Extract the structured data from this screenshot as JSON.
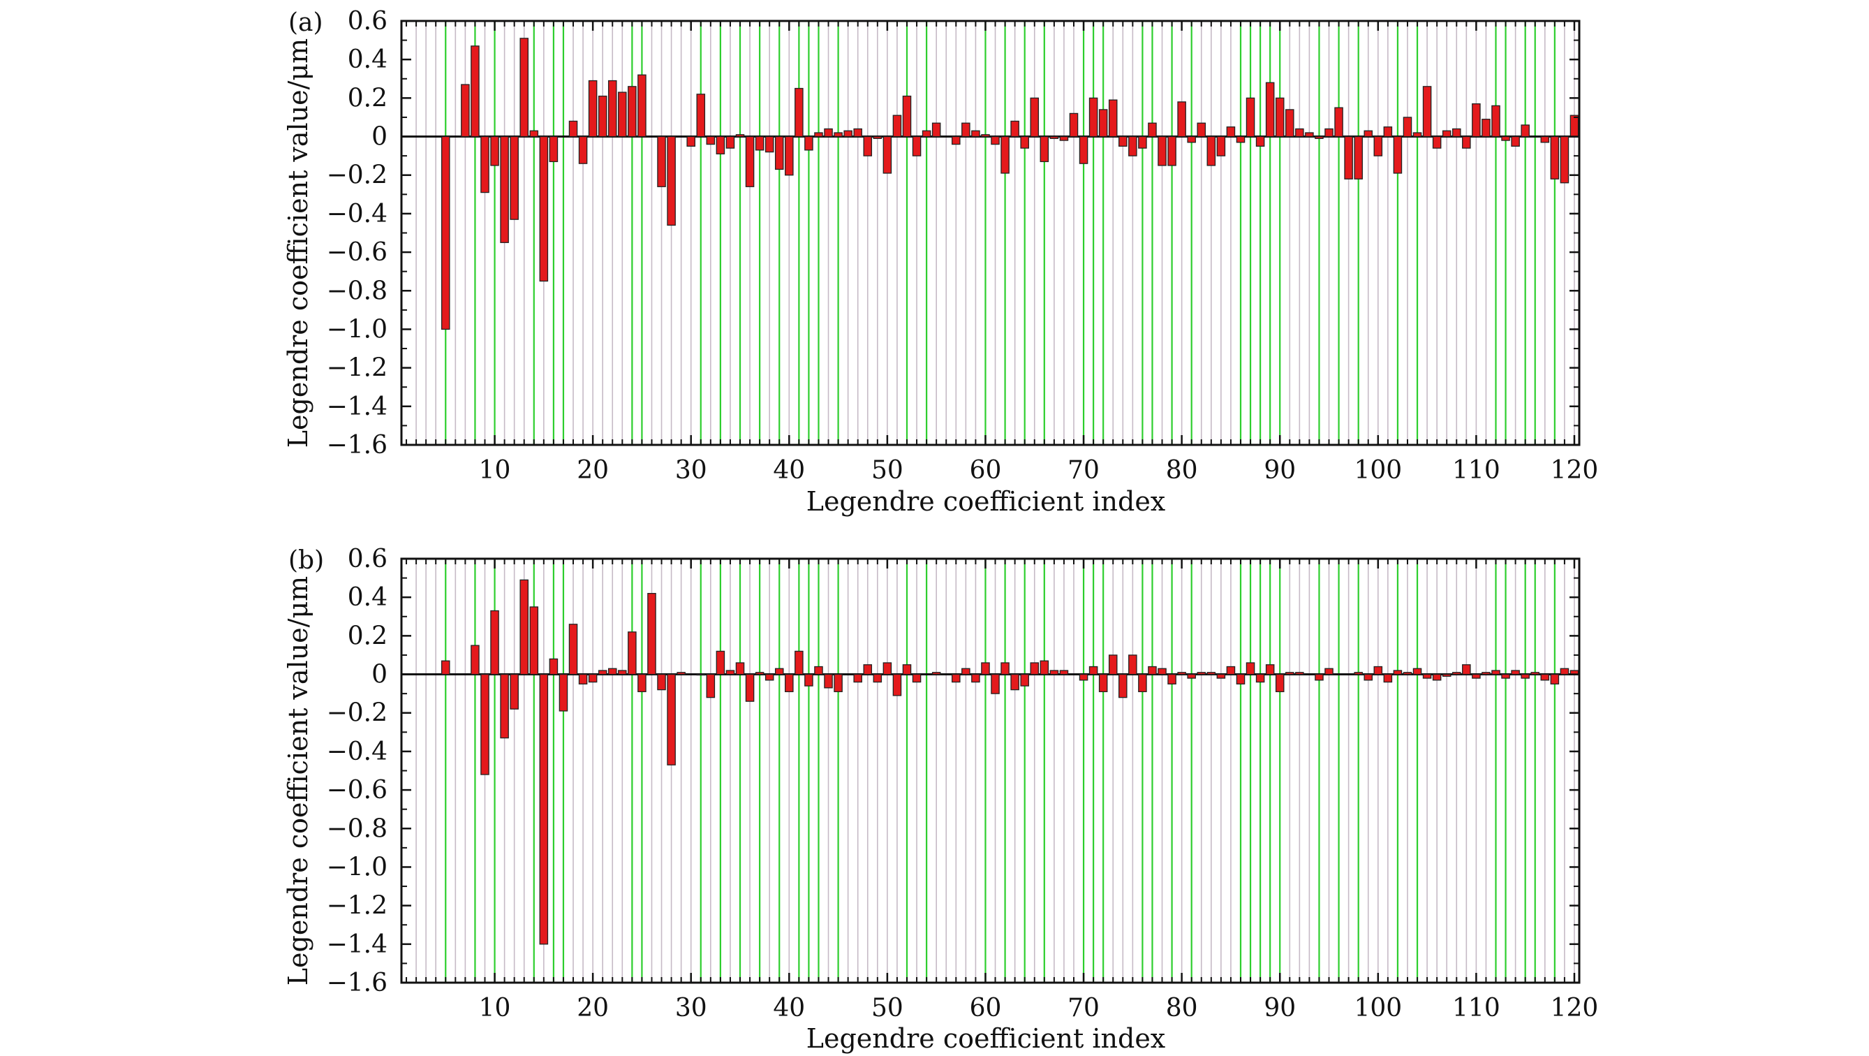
{
  "colors": {
    "bar_fill": "#e41a1c",
    "bar_edge": "#222222",
    "grid_green": "#22cc22",
    "grid_grey": "#b9a9b9",
    "axis": "#111111"
  },
  "chart_data": [
    {
      "panel": "(a)",
      "type": "bar",
      "xlabel": "Legendre coefficient index",
      "ylabel": "Legendre coefficient value/μm",
      "xlim": [
        1,
        120
      ],
      "ylim": [
        -1.6,
        0.6
      ],
      "xticks": [
        10,
        20,
        30,
        40,
        50,
        60,
        70,
        80,
        90,
        100,
        110,
        120
      ],
      "yticks": [
        0.6,
        0.4,
        0.2,
        0,
        -0.2,
        -0.4,
        -0.6,
        -0.8,
        -1.0,
        -1.2,
        -1.4,
        -1.6
      ],
      "ytick_labels": [
        "0.6",
        "0.4",
        "0.2",
        "0",
        "−0.2",
        "−0.4",
        "−0.6",
        "−0.8",
        "−1.0",
        "−1.2",
        "−1.4",
        "−1.6"
      ],
      "grid": "vertical",
      "x": [
        5,
        7,
        8,
        9,
        10,
        11,
        12,
        13,
        14,
        15,
        16,
        18,
        19,
        20,
        21,
        22,
        23,
        24,
        25,
        27,
        28,
        30,
        31,
        32,
        33,
        34,
        35,
        36,
        37,
        38,
        39,
        40,
        41,
        42,
        43,
        44,
        45,
        46,
        47,
        48,
        49,
        50,
        51,
        52,
        53,
        54,
        55,
        57,
        58,
        59,
        60,
        61,
        62,
        63,
        64,
        65,
        66,
        67,
        68,
        69,
        70,
        71,
        72,
        73,
        74,
        75,
        76,
        77,
        78,
        79,
        80,
        81,
        82,
        83,
        84,
        85,
        86,
        87,
        88,
        89,
        90,
        91,
        92,
        93,
        94,
        95,
        96,
        97,
        98,
        99,
        100,
        101,
        102,
        103,
        104,
        105,
        106,
        107,
        108,
        109,
        110,
        111,
        112,
        113,
        114,
        115,
        117,
        118,
        119,
        120
      ],
      "values": [
        -1.0,
        0.27,
        0.47,
        -0.29,
        -0.15,
        -0.55,
        -0.43,
        0.51,
        0.03,
        -0.75,
        -0.13,
        0.08,
        -0.14,
        0.29,
        0.21,
        0.29,
        0.23,
        0.26,
        0.32,
        -0.26,
        -0.46,
        -0.05,
        0.22,
        -0.04,
        -0.09,
        -0.06,
        0.01,
        -0.26,
        -0.07,
        -0.08,
        -0.17,
        -0.2,
        0.25,
        -0.07,
        0.02,
        0.04,
        0.02,
        0.03,
        0.04,
        -0.1,
        -0.01,
        -0.19,
        0.11,
        0.21,
        -0.1,
        0.03,
        0.07,
        -0.04,
        0.07,
        0.03,
        0.01,
        -0.04,
        -0.19,
        0.08,
        -0.06,
        0.2,
        -0.13,
        -0.01,
        -0.02,
        0.12,
        -0.14,
        0.2,
        0.14,
        0.19,
        -0.05,
        -0.1,
        -0.06,
        0.07,
        -0.15,
        -0.15,
        0.18,
        -0.03,
        0.07,
        -0.15,
        -0.1,
        0.05,
        -0.03,
        0.2,
        -0.05,
        0.28,
        0.2,
        0.14,
        0.04,
        0.02,
        -0.01,
        0.04,
        0.15,
        -0.22,
        -0.22,
        0.03,
        -0.1,
        0.05,
        -0.19,
        0.1,
        0.02,
        0.26,
        -0.06,
        0.03,
        0.04,
        -0.06,
        0.17,
        0.09,
        0.16,
        -0.02,
        -0.05,
        0.06,
        -0.03,
        -0.22,
        -0.24,
        0.11
      ]
    },
    {
      "panel": "(b)",
      "type": "bar",
      "xlabel": "Legendre coefficient index",
      "ylabel": "Legendre coefficient value/μm",
      "xlim": [
        1,
        120
      ],
      "ylim": [
        -1.6,
        0.6
      ],
      "xticks": [
        10,
        20,
        30,
        40,
        50,
        60,
        70,
        80,
        90,
        100,
        110,
        120
      ],
      "yticks": [
        0.6,
        0.4,
        0.2,
        0,
        -0.2,
        -0.4,
        -0.6,
        -0.8,
        -1.0,
        -1.2,
        -1.4,
        -1.6
      ],
      "ytick_labels": [
        "0.6",
        "0.4",
        "0.2",
        "0",
        "−0.2",
        "−0.4",
        "−0.6",
        "−0.8",
        "−1.0",
        "−1.2",
        "−1.4",
        "−1.6"
      ],
      "grid": "vertical",
      "x": [
        5,
        8,
        9,
        10,
        11,
        12,
        13,
        14,
        15,
        16,
        17,
        18,
        19,
        20,
        21,
        22,
        23,
        24,
        25,
        26,
        27,
        28,
        29,
        31,
        32,
        33,
        34,
        35,
        36,
        37,
        38,
        39,
        40,
        41,
        42,
        43,
        44,
        45,
        47,
        48,
        49,
        50,
        51,
        52,
        53,
        55,
        57,
        58,
        59,
        60,
        61,
        62,
        63,
        64,
        65,
        66,
        67,
        68,
        70,
        71,
        72,
        73,
        74,
        75,
        76,
        77,
        78,
        79,
        80,
        81,
        82,
        83,
        84,
        85,
        86,
        87,
        88,
        89,
        90,
        91,
        92,
        94,
        95,
        98,
        99,
        100,
        101,
        102,
        103,
        104,
        105,
        106,
        107,
        108,
        109,
        110,
        111,
        112,
        113,
        114,
        115,
        116,
        117,
        118,
        119,
        120
      ],
      "values": [
        0.07,
        0.15,
        -0.52,
        0.33,
        -0.33,
        -0.18,
        0.49,
        0.35,
        -1.4,
        0.08,
        -0.19,
        0.26,
        -0.05,
        -0.04,
        0.02,
        0.03,
        0.02,
        0.22,
        -0.09,
        0.42,
        -0.08,
        -0.47,
        0.01,
        0.0,
        -0.12,
        0.12,
        0.02,
        0.06,
        -0.14,
        0.01,
        -0.03,
        0.03,
        -0.09,
        0.12,
        -0.06,
        0.04,
        -0.07,
        -0.09,
        -0.04,
        0.05,
        -0.04,
        0.06,
        -0.11,
        0.05,
        -0.04,
        0.01,
        -0.04,
        0.03,
        -0.04,
        0.06,
        -0.1,
        0.06,
        -0.08,
        -0.06,
        0.06,
        0.07,
        0.02,
        0.02,
        -0.03,
        0.04,
        -0.09,
        0.1,
        -0.12,
        0.1,
        -0.09,
        0.04,
        0.03,
        -0.05,
        0.01,
        -0.02,
        0.01,
        0.01,
        -0.02,
        0.04,
        -0.05,
        0.06,
        -0.04,
        0.05,
        -0.09,
        0.01,
        0.01,
        -0.03,
        0.03,
        0.01,
        -0.03,
        0.04,
        -0.04,
        0.02,
        0.01,
        0.03,
        -0.02,
        -0.03,
        -0.01,
        0.01,
        0.05,
        -0.02,
        0.01,
        0.02,
        -0.02,
        0.02,
        -0.02,
        0.01,
        -0.03,
        -0.05,
        0.03,
        0.02
      ]
    }
  ]
}
